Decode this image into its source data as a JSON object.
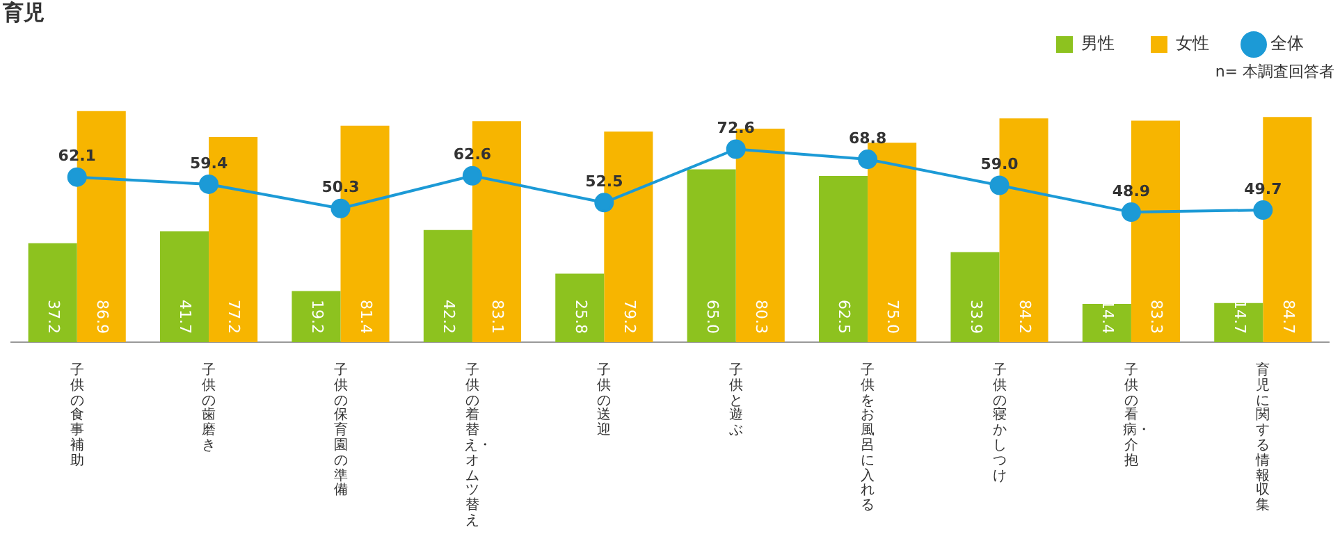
{
  "chart_data": {
    "type": "bar",
    "title": "育児",
    "annotations": [
      "n= 本調査回答者"
    ],
    "categories": [
      "子供の食事補助",
      "子供の歯磨き",
      "子供の保育園の準備",
      "子供の着替え・オムツ替え",
      "子供の送迎",
      "子供と遊ぶ",
      "子供をお風呂に入れる",
      "子供の寝かしつけ",
      "子供の看病・介抱",
      "育児に関する情報収集"
    ],
    "series": [
      {
        "name": "男性",
        "color": "#8dc21f",
        "values": [
          37.2,
          41.7,
          19.2,
          42.2,
          25.8,
          65.0,
          62.5,
          33.9,
          14.4,
          14.7
        ],
        "value_labels": [
          "37.2",
          "41.7",
          "19.2",
          "42.2",
          "25.8",
          "65.0",
          "62.5",
          "33.9",
          "14.4",
          "14.7"
        ]
      },
      {
        "name": "女性",
        "color": "#f7b500",
        "values": [
          86.9,
          77.2,
          81.4,
          83.1,
          79.2,
          80.3,
          75.0,
          84.2,
          83.3,
          84.7
        ],
        "value_labels": [
          "86.9",
          "77.2",
          "81.4",
          "83.1",
          "79.2",
          "80.3",
          "75.0",
          "84.2",
          "83.3",
          "84.7"
        ]
      },
      {
        "name": "全体",
        "type": "line",
        "color": "#1c9ad6",
        "values": [
          62.1,
          59.4,
          50.3,
          62.6,
          52.5,
          72.6,
          68.8,
          59.0,
          48.9,
          49.7
        ],
        "value_labels": [
          "62.1",
          "59.4",
          "50.3",
          "62.6",
          "52.5",
          "72.6",
          "68.8",
          "59.0",
          "48.9",
          "49.7"
        ]
      }
    ],
    "legend": "top right",
    "marker": "circle",
    "grid": false
  }
}
